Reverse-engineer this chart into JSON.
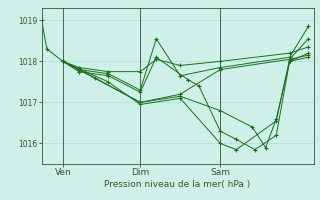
{
  "bg_color": "#cff0e8",
  "line_color": "#1a6e1a",
  "grid_color": "#a8d8ce",
  "axis_color": "#2d5a2d",
  "ylabel_ticks": [
    1016,
    1017,
    1018,
    1019
  ],
  "xlabel": "Pression niveau de la mer( hPa )",
  "xtick_labels": [
    "Ven",
    "Dim",
    "Sam"
  ],
  "xtick_positions": [
    0.08,
    0.37,
    0.67
  ],
  "series": [
    [
      0.0,
      1019.0,
      0.02,
      1018.3,
      0.08,
      1018.0,
      0.37,
      1017.0,
      0.52,
      1017.2,
      0.67,
      1017.8,
      0.93,
      1018.05,
      1.0,
      1018.55
    ],
    [
      0.08,
      1018.0,
      0.14,
      1017.85,
      0.25,
      1017.75,
      0.37,
      1017.75,
      0.43,
      1018.05,
      0.52,
      1017.9,
      0.67,
      1018.0,
      0.93,
      1018.2,
      1.0,
      1018.35
    ],
    [
      0.08,
      1018.0,
      0.14,
      1017.8,
      0.25,
      1017.7,
      0.37,
      1017.3,
      0.43,
      1018.55,
      0.52,
      1017.65,
      0.67,
      1017.85,
      0.93,
      1018.1,
      1.0,
      1018.85
    ],
    [
      0.08,
      1018.0,
      0.14,
      1017.75,
      0.25,
      1017.65,
      0.37,
      1017.25,
      0.43,
      1018.1,
      0.55,
      1017.55,
      0.59,
      1017.4,
      0.67,
      1016.3,
      0.73,
      1016.1,
      0.8,
      1015.85,
      0.88,
      1016.2,
      0.93,
      1018.0,
      1.0,
      1018.2
    ],
    [
      0.08,
      1018.0,
      0.2,
      1017.6,
      0.37,
      1017.0,
      0.52,
      1017.15,
      0.67,
      1016.8,
      0.79,
      1016.4,
      0.84,
      1015.9,
      0.88,
      1016.6,
      0.93,
      1018.0,
      1.0,
      1018.1
    ],
    [
      0.08,
      1018.0,
      0.25,
      1017.5,
      0.37,
      1016.95,
      0.52,
      1017.1,
      0.67,
      1016.0,
      0.73,
      1015.85,
      0.88,
      1016.55,
      0.93,
      1018.05,
      1.0,
      1018.15
    ]
  ],
  "xlim": [
    0.0,
    1.02
  ],
  "ylim": [
    1015.5,
    1019.3
  ],
  "figsize": [
    3.2,
    2.0
  ],
  "dpi": 100
}
